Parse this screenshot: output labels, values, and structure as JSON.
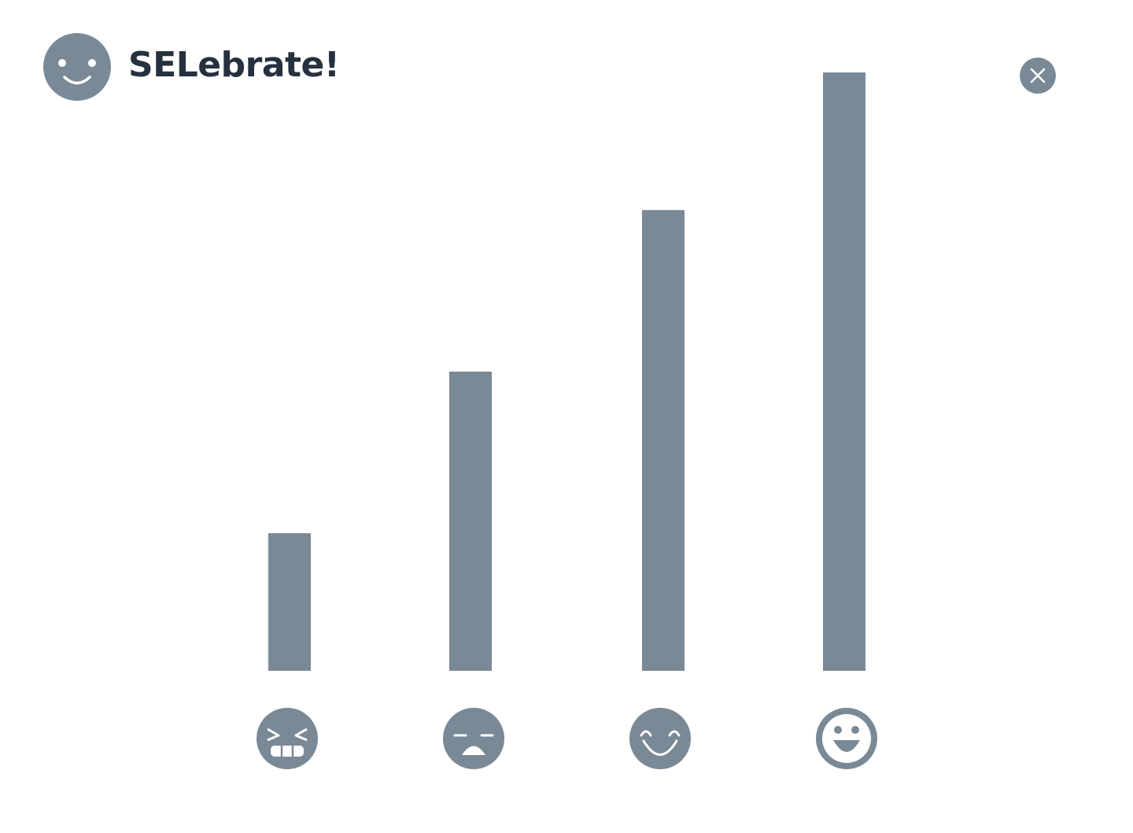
{
  "app": {
    "title": "SELebrate!",
    "logo_icon": "smiley-face-icon"
  },
  "close_button": {
    "icon": "close-icon"
  },
  "colors": {
    "bar": "#7a8996",
    "icon": "#7a8996",
    "title": "#26313f",
    "background": "#ffffff"
  },
  "chart_data": {
    "type": "bar",
    "categories": [
      "angry",
      "sad",
      "happy",
      "very-happy"
    ],
    "category_icons": [
      "angry-face-icon",
      "sad-face-icon",
      "smiling-face-icon",
      "grinning-face-icon"
    ],
    "values": [
      23,
      50,
      77,
      100
    ],
    "ylim": [
      0,
      100
    ],
    "title": "",
    "xlabel": "",
    "ylabel": "",
    "grid": false,
    "legend": "none"
  }
}
